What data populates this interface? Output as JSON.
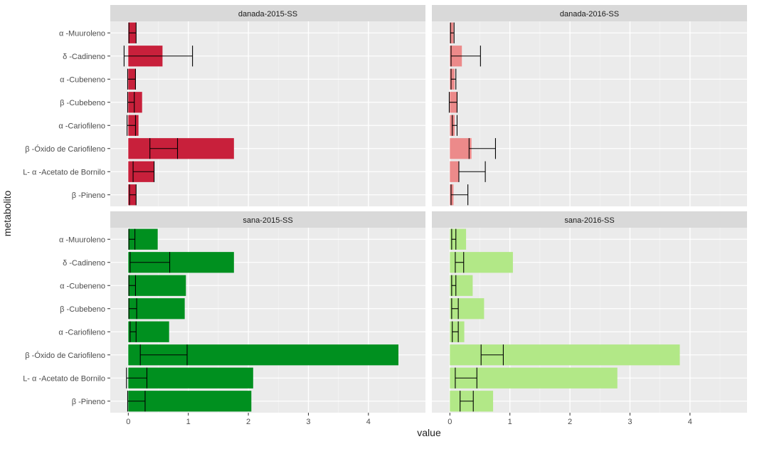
{
  "chart_data": {
    "type": "bar",
    "orientation": "horizontal",
    "faceted": true,
    "xlabel": "value",
    "ylabel": "metabolito",
    "xlim": [
      -0.3,
      4.95
    ],
    "x_ticks": [
      0,
      1,
      2,
      3,
      4
    ],
    "grid": true,
    "categories": [
      "α -Muuroleno",
      "δ -Cadineno",
      "α -Cubeneno",
      "β -Cubebeno",
      "α -Cariofileno",
      "β -Óxido de Cariofileno",
      "L- α -Acetato de Bornilo",
      "β -Pineno"
    ],
    "panels": [
      {
        "title": "danada-2015-SS",
        "color": "#C8203B",
        "values": [
          0.13,
          0.57,
          0.12,
          0.23,
          0.17,
          1.76,
          0.43,
          0.13
        ],
        "error_low": [
          0.01,
          -0.07,
          -0.01,
          -0.01,
          -0.02,
          0.36,
          0.08,
          0.02
        ],
        "error_high": [
          0.13,
          1.07,
          0.12,
          0.1,
          0.12,
          0.82,
          0.43,
          0.13
        ]
      },
      {
        "title": "danada-2016-SS",
        "color": "#EC8A8A",
        "values": [
          0.06,
          0.2,
          0.08,
          0.12,
          0.08,
          0.36,
          0.15,
          0.06
        ],
        "error_low": [
          0.01,
          0.02,
          0.02,
          -0.01,
          0.04,
          0.32,
          0.15,
          0.02
        ],
        "error_high": [
          0.07,
          0.51,
          0.1,
          0.12,
          0.12,
          0.76,
          0.59,
          0.3
        ]
      },
      {
        "title": "sana-2015-SS",
        "color": "#00901F",
        "values": [
          0.49,
          1.76,
          0.96,
          0.94,
          0.68,
          4.5,
          2.08,
          2.05
        ],
        "error_low": [
          0.01,
          0.03,
          0.01,
          0.01,
          0.03,
          0.2,
          -0.03,
          -0.01
        ],
        "error_high": [
          0.11,
          0.69,
          0.12,
          0.14,
          0.13,
          0.98,
          0.31,
          0.28
        ]
      },
      {
        "title": "sana-2016-SS",
        "color": "#B2E887",
        "values": [
          0.27,
          1.05,
          0.38,
          0.57,
          0.24,
          3.83,
          2.79,
          0.72
        ],
        "error_low": [
          0.03,
          0.09,
          0.03,
          0.03,
          0.04,
          0.52,
          0.09,
          0.17
        ],
        "error_high": [
          0.1,
          0.23,
          0.1,
          0.14,
          0.14,
          0.89,
          0.45,
          0.39
        ]
      }
    ]
  }
}
